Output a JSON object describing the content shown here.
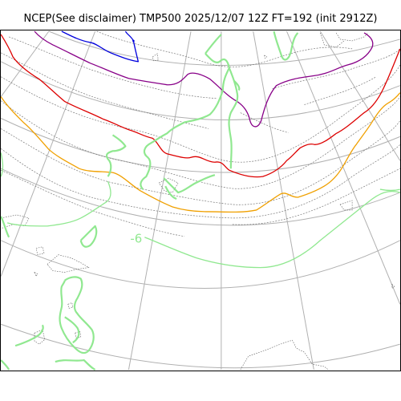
{
  "title": "NCEP(See disclaimer) TMP500 2025/12/07 12Z FT=192 (init 2912Z)",
  "colors": {
    "blue_contour": "#0000dd",
    "purple_contour": "#880088",
    "red_contour": "#dd0000",
    "orange_contour": "#f0a000",
    "green_contour": "#90e890",
    "graticule": "#b0b0b0",
    "coastline": "#555555",
    "isotherm": "#777777"
  },
  "contour_labels": [
    {
      "text": "-6",
      "color": "#90e890"
    }
  ]
}
